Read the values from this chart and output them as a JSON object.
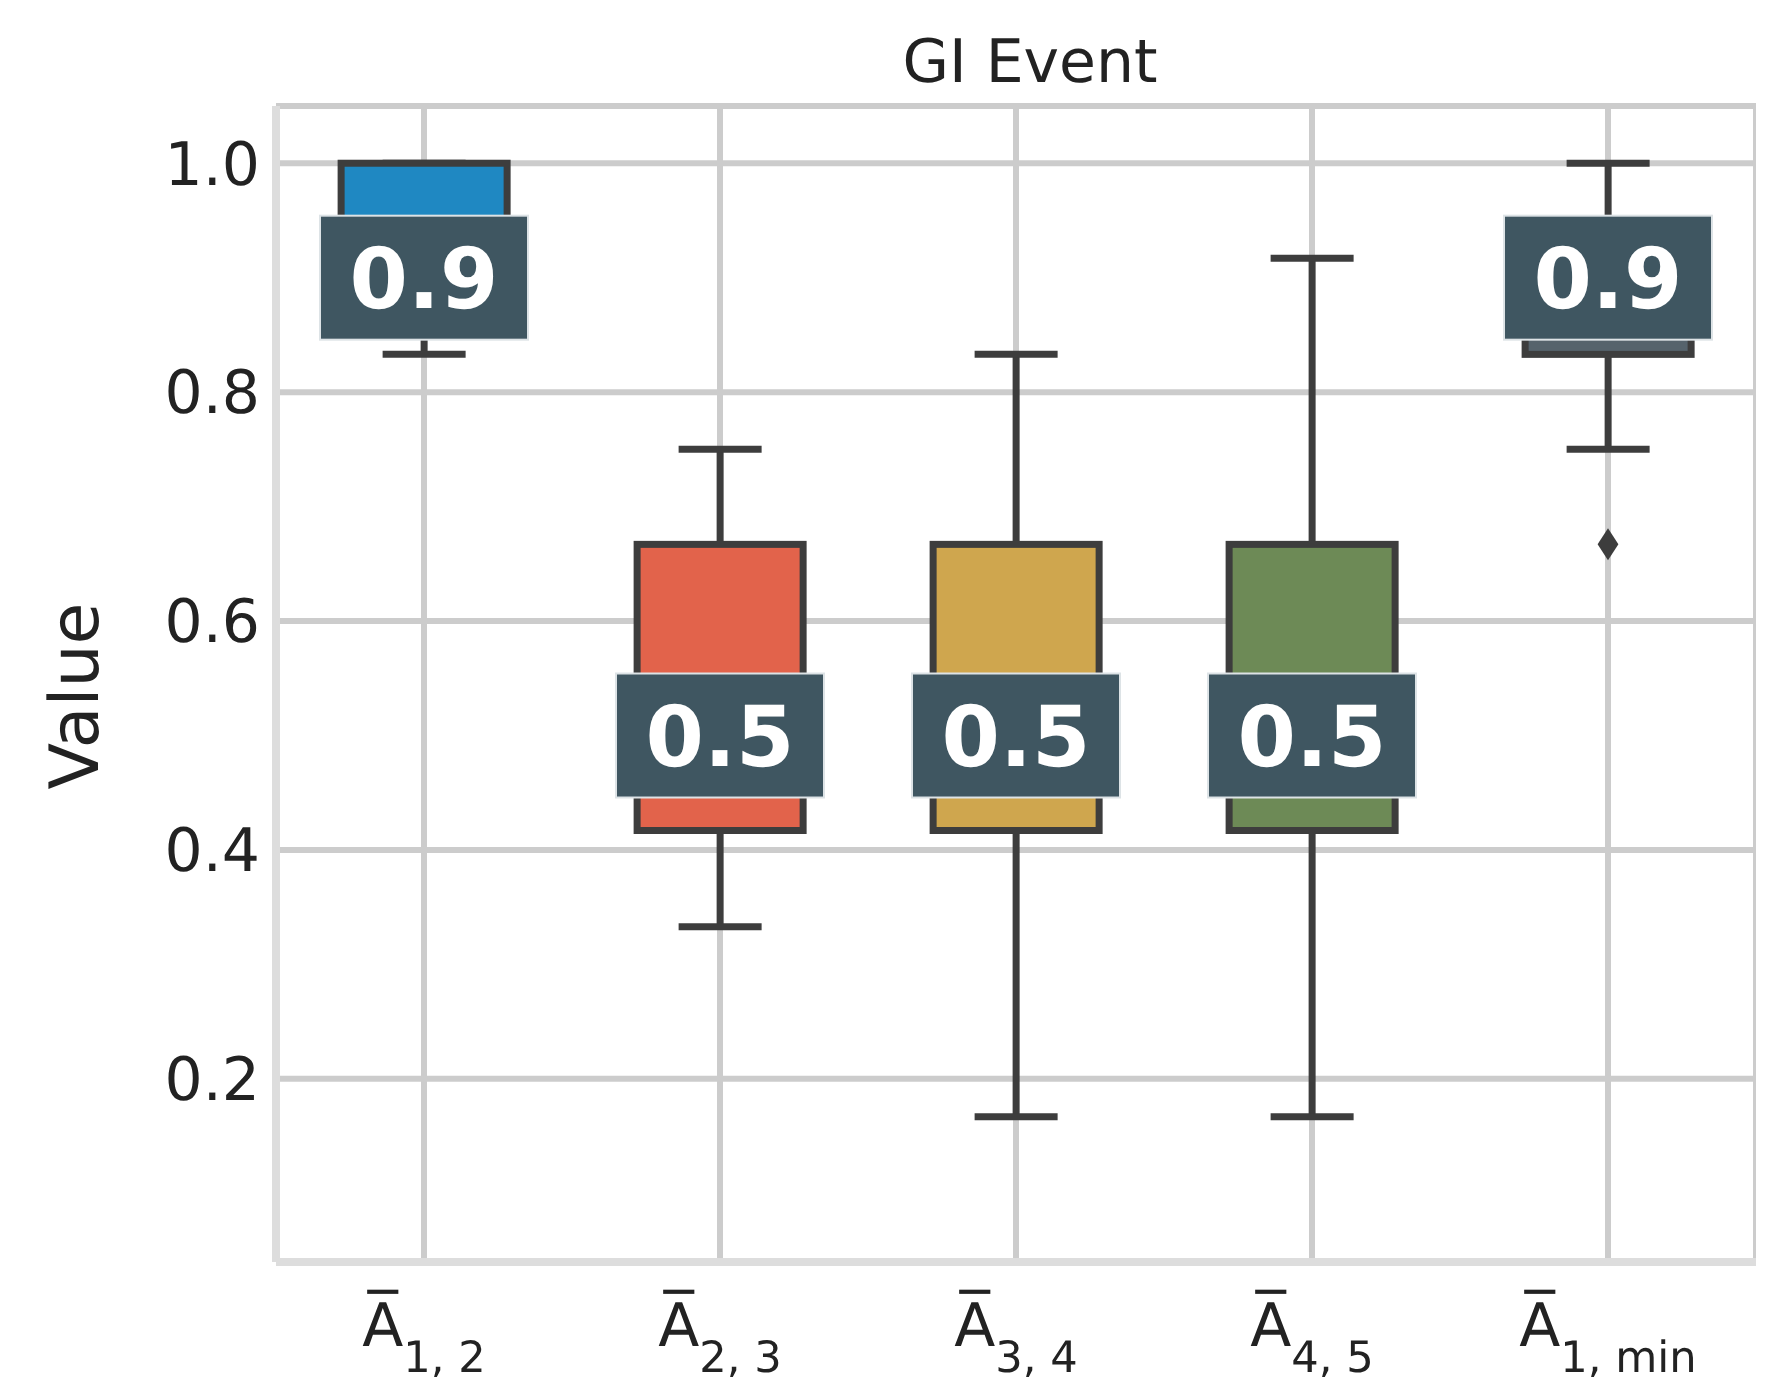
{
  "chart_data": {
    "type": "box",
    "title": "GI Event",
    "ylabel": "Value",
    "categories": [
      "A̅$_{1, 2}$",
      "A̅$_{2, 3}$",
      "A̅$_{3, 4}$",
      "A̅$_{4, 5}$",
      "A̅$_{1, min}$"
    ],
    "colors": [
      "#1f88c2",
      "#e2634b",
      "#cfa64e",
      "#6d8a56",
      "#56636c"
    ],
    "boxes": [
      {
        "low": 0.833,
        "q1": 0.854,
        "median": 0.9,
        "q3": 1.0,
        "high": 1.0
      },
      {
        "low": 0.333,
        "q1": 0.417,
        "median": 0.5,
        "q3": 0.667,
        "high": 0.75
      },
      {
        "low": 0.167,
        "q1": 0.417,
        "median": 0.5,
        "q3": 0.667,
        "high": 0.833
      },
      {
        "low": 0.167,
        "q1": 0.417,
        "median": 0.5,
        "q3": 0.667,
        "high": 0.917
      },
      {
        "low": 0.75,
        "q1": 0.833,
        "median": 0.9,
        "q3": 0.917,
        "high": 1.0,
        "outliers": [
          0.667
        ]
      }
    ],
    "annotations": [
      {
        "text": "0.9",
        "x": "A̅$_{1, 2}$",
        "y": 0.9
      },
      {
        "text": "0.5",
        "x": "A̅$_{2, 3}$",
        "y": 0.5
      },
      {
        "text": "0.5",
        "x": "A̅$_{3, 4}$",
        "y": 0.5
      },
      {
        "text": "0.5",
        "x": "A̅$_{4, 5}$",
        "y": 0.5
      },
      {
        "text": "0.9",
        "x": "A̅$_{1, min}$",
        "y": 0.9
      }
    ],
    "ylim": [
      0.04,
      1.05
    ],
    "yticks": [
      0.2,
      0.4,
      0.6,
      0.8,
      {
        "value": 1,
        "label": "1.0"
      }
    ],
    "grid": true,
    "marker": "diamond"
  }
}
